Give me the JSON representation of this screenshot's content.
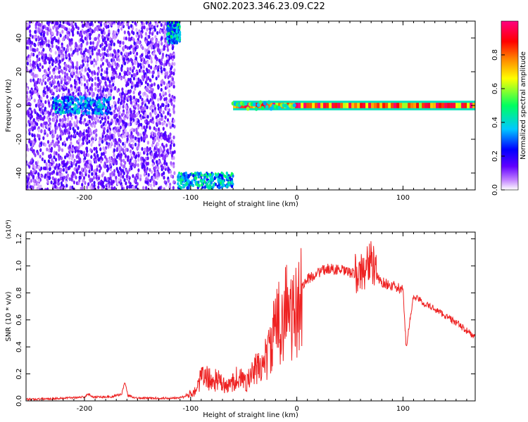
{
  "title": "GN02.2023.346.23.09.C22",
  "chart_data": [
    {
      "type": "heatmap",
      "title": "GN02.2023.346.23.09.C22",
      "xlabel": "Height of straight line (km)",
      "ylabel": "Frequency (Hz)",
      "xlim": [
        -255,
        168
      ],
      "ylim": [
        -50,
        50
      ],
      "x_ticks": [
        -200,
        -100,
        0,
        100
      ],
      "x_tick_labels": [
        "-200",
        "-100",
        "0",
        "100"
      ],
      "y_ticks": [
        -40,
        -20,
        0,
        20,
        40
      ],
      "y_tick_labels": [
        "-40",
        "-20",
        "0",
        "20",
        "40"
      ],
      "colorbar": {
        "label": "Normalized spectral amplitude",
        "range": [
          0,
          1
        ],
        "ticks": [
          0.0,
          0.2,
          0.4,
          0.6,
          0.8
        ],
        "tick_labels": [
          "0.0",
          "0.2",
          "0.4",
          "0.6",
          "0.8"
        ],
        "colors": [
          "#ffffff",
          "#c080ff",
          "#6000ff",
          "#0000ff",
          "#00c8ff",
          "#00ff60",
          "#ffff00",
          "#ff8000",
          "#ff0000",
          "#ff0080"
        ]
      },
      "regions": [
        {
          "desc": "noise",
          "x": [
            -255,
            -115
          ],
          "y": [
            -50,
            50
          ],
          "amplitude": 0.15
        },
        {
          "desc": "burst",
          "x": [
            -230,
            -175
          ],
          "y": [
            -5,
            5
          ],
          "amplitude": 0.3
        },
        {
          "desc": "burst",
          "x": [
            -122,
            -110
          ],
          "y": [
            37,
            50
          ],
          "amplitude": 0.35
        },
        {
          "desc": "burst",
          "x": [
            -112,
            -60
          ],
          "y": [
            -49,
            -40
          ],
          "amplitude": 0.35
        },
        {
          "desc": "signal",
          "x": [
            -60,
            168
          ],
          "y": [
            -2,
            2
          ],
          "amplitude": 0.9
        }
      ]
    },
    {
      "type": "line",
      "title": "",
      "xlabel": "Height of straight line (km)",
      "ylabel": "SNR (10 * v/v)",
      "scale_label": "(x10⁴)",
      "xlim": [
        -255,
        168
      ],
      "ylim": [
        0,
        1.25
      ],
      "x_ticks": [
        -200,
        -100,
        0,
        100
      ],
      "x_tick_labels": [
        "-200",
        "-100",
        "0",
        "100"
      ],
      "y_ticks": [
        0.0,
        0.2,
        0.4,
        0.6,
        0.8,
        1.0,
        1.2
      ],
      "y_tick_labels": [
        "0.0",
        "0.2",
        "0.4",
        "0.6",
        "0.8",
        "1.0",
        "1.2"
      ],
      "series": [
        {
          "color": "#ee2222",
          "x": [
            -255,
            -220,
            -200,
            -196,
            -192,
            -175,
            -165,
            -162,
            -159,
            -150,
            -120,
            -105,
            -95,
            -90,
            -85,
            -80,
            -75,
            -70,
            -65,
            -60,
            -55,
            -50,
            -45,
            -40,
            -35,
            -30,
            -25,
            -20,
            -15,
            -10,
            -5,
            0,
            5,
            10,
            20,
            30,
            40,
            50,
            60,
            65,
            70,
            75,
            80,
            90,
            100,
            103,
            110,
            120,
            130,
            140,
            150,
            160,
            168
          ],
          "y": [
            0.01,
            0.02,
            0.03,
            0.05,
            0.03,
            0.03,
            0.05,
            0.14,
            0.04,
            0.02,
            0.02,
            0.03,
            0.08,
            0.17,
            0.18,
            0.14,
            0.16,
            0.12,
            0.1,
            0.15,
            0.18,
            0.14,
            0.16,
            0.22,
            0.25,
            0.3,
            0.38,
            0.55,
            0.6,
            0.7,
            0.6,
            0.65,
            0.85,
            0.9,
            0.95,
            0.98,
            0.97,
            0.95,
            0.93,
            1.0,
            1.05,
            0.92,
            0.88,
            0.85,
            0.82,
            0.4,
            0.78,
            0.72,
            0.68,
            0.63,
            0.58,
            0.52,
            0.47
          ]
        }
      ]
    }
  ]
}
